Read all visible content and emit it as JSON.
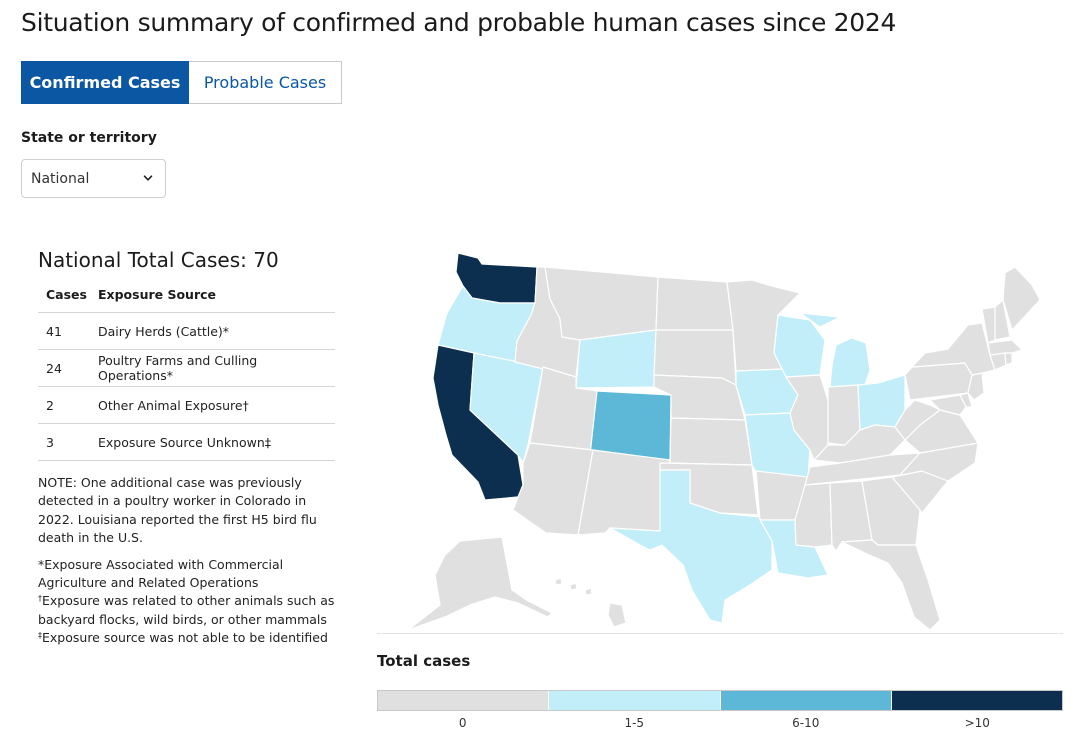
{
  "page": {
    "title": "Situation summary of confirmed and probable human cases since 2024"
  },
  "tabs": [
    {
      "label": "Confirmed Cases",
      "active": true
    },
    {
      "label": "Probable Cases",
      "active": false
    }
  ],
  "state_select": {
    "label": "State or territory",
    "value": "National"
  },
  "summary": {
    "heading": "National Total Cases: 70",
    "columns": [
      "Cases",
      "Exposure Source"
    ],
    "rows": [
      {
        "cases": "41",
        "source": "Dairy Herds (Cattle)*"
      },
      {
        "cases": "24",
        "source": "Poultry Farms and Culling Operations*"
      },
      {
        "cases": "2",
        "source": "Other Animal Exposure†"
      },
      {
        "cases": "3",
        "source": "Exposure Source Unknown‡"
      }
    ]
  },
  "notes": {
    "note": "NOTE: One additional case was previously detected in a poultry worker in Colorado in 2022. Louisiana reported the first H5 bird flu death in the U.S.",
    "footnote_star": "*Exposure Associated with Commercial Agriculture and Related Operations",
    "footnote_dagger_mark": "†",
    "footnote_dagger": "Exposure was related to other animals such as backyard flocks, wild birds, or other mammals",
    "footnote_ddagger_mark": "‡",
    "footnote_ddagger": "Exposure source was not able to be identified"
  },
  "legend": {
    "title": "Total cases",
    "bins": [
      {
        "label": "0",
        "color": "#e0e0e0"
      },
      {
        "label": "1-5",
        "color": "#c2eef9"
      },
      {
        "label": "6-10",
        "color": "#5cb8d6"
      },
      {
        "label": ">10",
        "color": "#0d2f4f"
      }
    ]
  },
  "map": {
    "states": [
      {
        "state": "WA",
        "bin": ">10"
      },
      {
        "state": "OR",
        "bin": "1-5"
      },
      {
        "state": "CA",
        "bin": ">10"
      },
      {
        "state": "NV",
        "bin": "1-5"
      },
      {
        "state": "ID",
        "bin": "0"
      },
      {
        "state": "MT",
        "bin": "0"
      },
      {
        "state": "WY",
        "bin": "1-5"
      },
      {
        "state": "UT",
        "bin": "0"
      },
      {
        "state": "CO",
        "bin": "6-10"
      },
      {
        "state": "AZ",
        "bin": "0"
      },
      {
        "state": "NM",
        "bin": "0"
      },
      {
        "state": "ND",
        "bin": "0"
      },
      {
        "state": "SD",
        "bin": "0"
      },
      {
        "state": "NE",
        "bin": "0"
      },
      {
        "state": "KS",
        "bin": "0"
      },
      {
        "state": "OK",
        "bin": "0"
      },
      {
        "state": "TX",
        "bin": "1-5"
      },
      {
        "state": "MN",
        "bin": "0"
      },
      {
        "state": "IA",
        "bin": "1-5"
      },
      {
        "state": "MO",
        "bin": "1-5"
      },
      {
        "state": "AR",
        "bin": "0"
      },
      {
        "state": "LA",
        "bin": "1-5"
      },
      {
        "state": "WI",
        "bin": "1-5"
      },
      {
        "state": "IL",
        "bin": "0"
      },
      {
        "state": "MI",
        "bin": "1-5"
      },
      {
        "state": "IN",
        "bin": "0"
      },
      {
        "state": "OH",
        "bin": "1-5"
      },
      {
        "state": "KY",
        "bin": "0"
      },
      {
        "state": "TN",
        "bin": "0"
      },
      {
        "state": "MS",
        "bin": "0"
      },
      {
        "state": "AL",
        "bin": "0"
      },
      {
        "state": "GA",
        "bin": "0"
      },
      {
        "state": "FL",
        "bin": "0"
      },
      {
        "state": "SC",
        "bin": "0"
      },
      {
        "state": "NC",
        "bin": "0"
      },
      {
        "state": "VA",
        "bin": "0"
      },
      {
        "state": "WV",
        "bin": "0"
      },
      {
        "state": "PA",
        "bin": "0"
      },
      {
        "state": "NY",
        "bin": "0"
      },
      {
        "state": "NJ",
        "bin": "0"
      },
      {
        "state": "DE",
        "bin": "0"
      },
      {
        "state": "MD",
        "bin": "0"
      },
      {
        "state": "CT",
        "bin": "0"
      },
      {
        "state": "RI",
        "bin": "0"
      },
      {
        "state": "MA",
        "bin": "0"
      },
      {
        "state": "VT",
        "bin": "0"
      },
      {
        "state": "NH",
        "bin": "0"
      },
      {
        "state": "ME",
        "bin": "0"
      },
      {
        "state": "AK",
        "bin": "0"
      },
      {
        "state": "HI",
        "bin": "0"
      }
    ]
  }
}
